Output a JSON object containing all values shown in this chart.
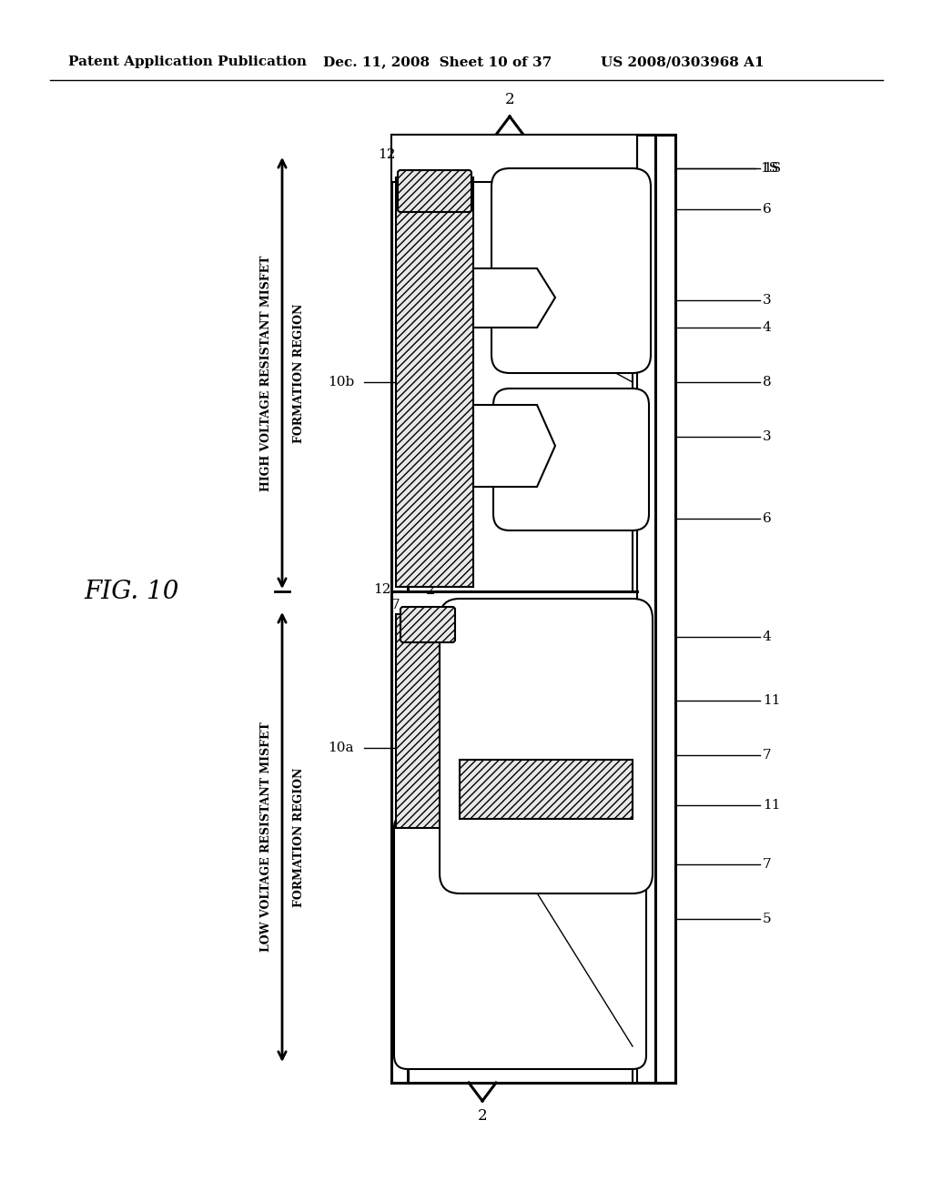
{
  "header_left": "Patent Application Publication",
  "header_mid": "Dec. 11, 2008  Sheet 10 of 37",
  "header_right": "US 2008/0303968 A1",
  "fig_label": "FIG. 10",
  "high_voltage_text1": "HIGH VOLTAGE RESISTANT MISFET",
  "high_voltage_text2": "FORMATION REGION",
  "low_voltage_text1": "LOW VOLTAGE RESISTANT MISFET",
  "low_voltage_text2": "FORMATION REGION",
  "bg_color": "#ffffff",
  "lc": "#000000"
}
